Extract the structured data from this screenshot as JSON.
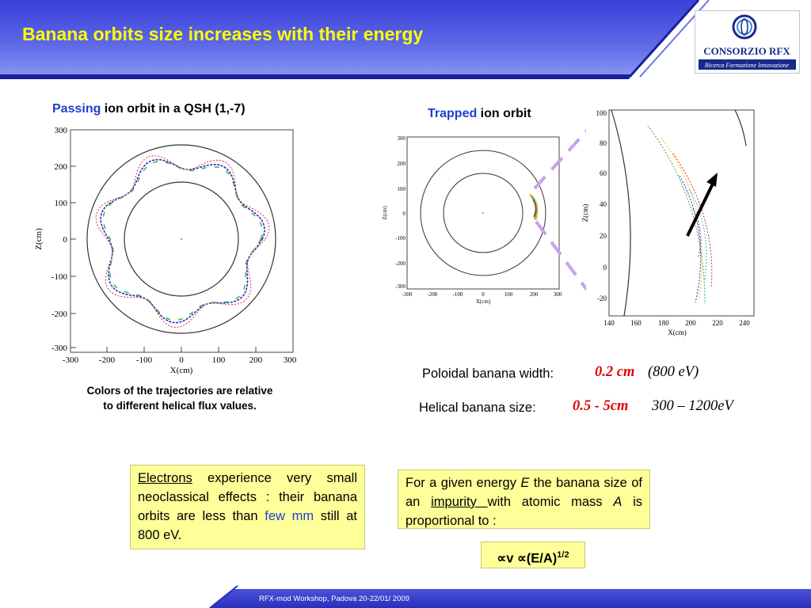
{
  "header": {
    "title": "Banana orbits size increases with their energy",
    "logo": {
      "name": "CONSORZIO RFX",
      "subtitle": "Ricerca Formazione Innovazione"
    }
  },
  "left_plot": {
    "caption_accent": "Passing",
    "caption_rest": " ion orbit in a QSH (1,-7)",
    "xlabel": "X(cm)",
    "ylabel": "Z(cm)",
    "ticks": [
      "300",
      "200",
      "100",
      "0",
      "-100",
      "-200",
      "-300"
    ],
    "xticks": [
      "-300",
      "-200",
      "-100",
      "0",
      "100",
      "200",
      "300"
    ],
    "note_line1": "Colors of the trajectories are relative",
    "note_line2": "to different helical flux values."
  },
  "right_plot": {
    "caption_accent": "Trapped",
    "caption_rest": " ion orbit",
    "small_yticks": [
      "300",
      "200",
      "100",
      "0",
      "-100",
      "-200",
      "-300"
    ],
    "small_xticks": [
      "-300",
      "-200",
      "-100",
      "0",
      "100",
      "200",
      "300"
    ],
    "small_xlabel": "X(cm)",
    "small_ylabel": "Z(cm)",
    "zoom_yticks": [
      "100",
      "80",
      "60",
      "40",
      "20",
      "0",
      "-20"
    ],
    "zoom_xticks": [
      "140",
      "160",
      "180",
      "200",
      "220",
      "240"
    ],
    "zoom_xlabel": "X(cm)",
    "zoom_ylabel": "Z(cm)"
  },
  "measures": {
    "poloidal_label": "Poloidal banana width:",
    "poloidal_value": "0.2 cm",
    "poloidal_energy": "(800 eV)",
    "helical_label": "Helical banana size:",
    "helical_value": "0.5 - 5cm",
    "helical_energy": "300 – 1200eV"
  },
  "box_electrons": {
    "electrons": "Electrons",
    "text1": " experience very small neoclassical effects : their banana orbits are less than ",
    "few_mm": "few mm",
    "text2": " still at 800 eV."
  },
  "box_impurity": {
    "t1": " For a given energy ",
    "E": "E",
    "t2": " the banana size of an ",
    "impurity": "impurity ",
    "t3": "with atomic mass ",
    "A": "A",
    "t4": " is proportional to :"
  },
  "proportional": {
    "main": "∝v ∝(E/A)",
    "exp": "1/2"
  },
  "footer": {
    "text": "RFX-mod  Workshop, Padova  20-22/01/ 2009"
  },
  "colors": {
    "title": "#ffff00",
    "accent_blue": "#1f3fd0",
    "value_red": "#e00000",
    "box_yellow": "#ffff99",
    "dashed_violet": "#c8a0f0"
  }
}
